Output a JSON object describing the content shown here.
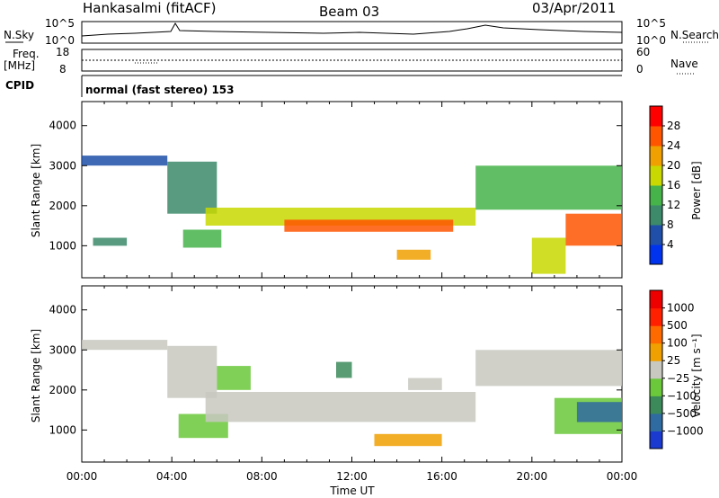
{
  "header": {
    "station": "Hankasalmi (fitACF)",
    "beam": "Beam 03",
    "date": "03/Apr/2011"
  },
  "top_panels": {
    "nsky_label": "N.Sky",
    "nsky_ticks": [
      "10^5",
      "10^0"
    ],
    "nsearch_label": "N.Search",
    "nsearch_ticks": [
      "10^5",
      "10^0"
    ],
    "freq_label": "Freq.",
    "freq_unit": "[MHz]",
    "freq_ticks": [
      "18",
      "8"
    ],
    "nave_label": "Nave",
    "nave_ticks": [
      "60",
      "0"
    ],
    "cpid_label": "CPID",
    "cpid_value": "normal (fast stereo) 153"
  },
  "chart_data": [
    {
      "type": "heatmap",
      "name": "power-panel",
      "ylabel": "Slant Range [km]",
      "xlabel": "",
      "ylim": [
        200,
        4600
      ],
      "y_ticks": [
        "1000",
        "2000",
        "3000",
        "4000"
      ],
      "y_tick_values": [
        1000,
        2000,
        3000,
        4000
      ],
      "xlim": [
        0,
        24
      ],
      "colorbar": {
        "label": "Power [dB]",
        "ticks": [
          "4",
          "8",
          "12",
          "16",
          "20",
          "24",
          "28"
        ],
        "colors": [
          "#0033ee",
          "#1f4fa8",
          "#3c8a6a",
          "#46b34a",
          "#c8d800",
          "#f0a000",
          "#ff5500",
          "#ff0000"
        ],
        "range": [
          0,
          32
        ]
      },
      "echo_regions": [
        {
          "t": [
            0.0,
            3.8
          ],
          "r": [
            3000,
            3250
          ],
          "value": 6
        },
        {
          "t": [
            3.8,
            6.0
          ],
          "r": [
            1800,
            3100
          ],
          "value": 10
        },
        {
          "t": [
            4.5,
            6.2
          ],
          "r": [
            950,
            1400
          ],
          "value": 14
        },
        {
          "t": [
            5.5,
            17.5
          ],
          "r": [
            1500,
            1950
          ],
          "value": 18
        },
        {
          "t": [
            9.0,
            16.5
          ],
          "r": [
            1350,
            1650
          ],
          "value": 24
        },
        {
          "t": [
            14.0,
            15.5
          ],
          "r": [
            650,
            900
          ],
          "value": 22
        },
        {
          "t": [
            17.5,
            24.0
          ],
          "r": [
            1900,
            3000
          ],
          "value": 14
        },
        {
          "t": [
            20.0,
            21.5
          ],
          "r": [
            300,
            1200
          ],
          "value": 16
        },
        {
          "t": [
            21.5,
            24.0
          ],
          "r": [
            1000,
            1800
          ],
          "value": 26
        },
        {
          "t": [
            0.5,
            2.0
          ],
          "r": [
            1000,
            1200
          ],
          "value": 8
        }
      ]
    },
    {
      "type": "heatmap",
      "name": "velocity-panel",
      "ylabel": "Slant Range [km]",
      "xlabel": "Time UT",
      "ylim": [
        200,
        4600
      ],
      "y_ticks": [
        "1000",
        "2000",
        "3000",
        "4000"
      ],
      "y_tick_values": [
        1000,
        2000,
        3000,
        4000
      ],
      "xlim": [
        0,
        24
      ],
      "x_ticks": [
        "00:00",
        "04:00",
        "08:00",
        "12:00",
        "16:00",
        "20:00",
        "00:00"
      ],
      "x_tick_values": [
        0,
        4,
        8,
        12,
        16,
        20,
        24
      ],
      "colorbar": {
        "label": "Velocity [m s⁻¹]",
        "ticks": [
          "1000",
          "500",
          "100",
          "25",
          "−25",
          "−100",
          "−500",
          "−1000"
        ],
        "colors": [
          "#1a3ad0",
          "#2f6aa0",
          "#3c8a5a",
          "#6ac83a",
          "#c8c8c0",
          "#f0a000",
          "#ff6a00",
          "#ff2000",
          "#ee0000"
        ],
        "range": [
          -1200,
          1200
        ]
      },
      "echo_regions": [
        {
          "t": [
            0.0,
            3.8
          ],
          "r": [
            3000,
            3250
          ],
          "value": 0
        },
        {
          "t": [
            3.8,
            6.0
          ],
          "r": [
            1800,
            3100
          ],
          "value": 0
        },
        {
          "t": [
            4.3,
            6.5
          ],
          "r": [
            800,
            1400
          ],
          "value": 150
        },
        {
          "t": [
            6.0,
            7.5
          ],
          "r": [
            2000,
            2600
          ],
          "value": 300
        },
        {
          "t": [
            5.5,
            17.5
          ],
          "r": [
            1200,
            1950
          ],
          "value": 0
        },
        {
          "t": [
            13.0,
            16.0
          ],
          "r": [
            600,
            900
          ],
          "value": -300
        },
        {
          "t": [
            14.5,
            16.0
          ],
          "r": [
            2000,
            2300
          ],
          "value": -100
        },
        {
          "t": [
            17.5,
            24.0
          ],
          "r": [
            2100,
            3000
          ],
          "value": 0
        },
        {
          "t": [
            21.0,
            24.0
          ],
          "r": [
            900,
            1800
          ],
          "value": 300
        },
        {
          "t": [
            22.0,
            24.0
          ],
          "r": [
            1200,
            1700
          ],
          "value": 900
        },
        {
          "t": [
            11.3,
            12.0
          ],
          "r": [
            2300,
            2700
          ],
          "value": 400
        }
      ]
    }
  ]
}
